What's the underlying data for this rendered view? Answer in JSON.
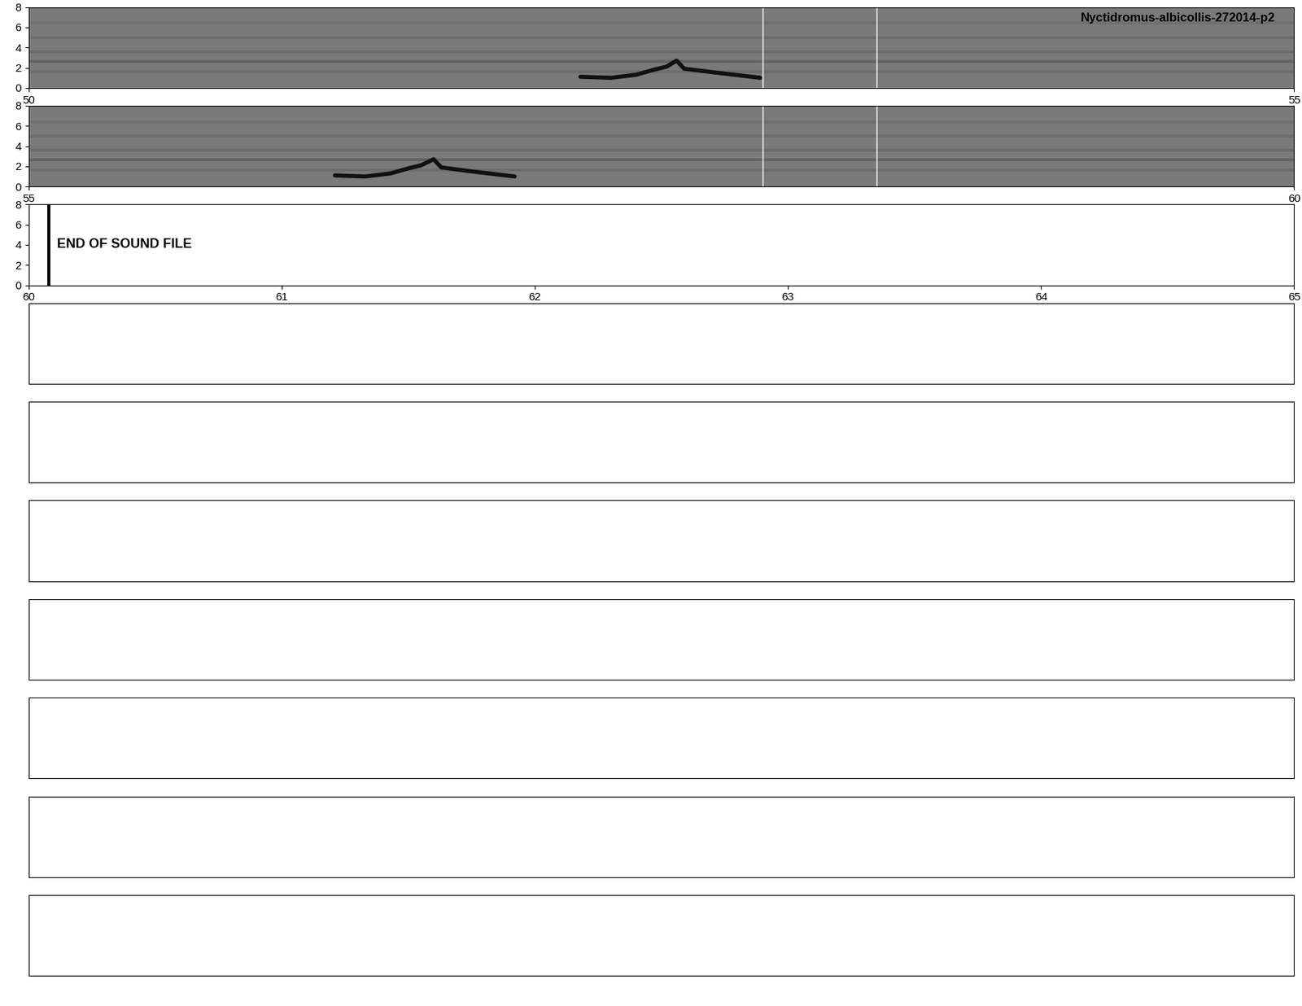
{
  "chart_data": {
    "type": "spectrogram",
    "title": "Nyctidromus-albicollis-272014-p2",
    "panels": [
      {
        "xlim": [
          50,
          55
        ],
        "xticks": [
          50,
          55
        ],
        "ylim": [
          0,
          8
        ],
        "yticks": [
          0,
          2,
          4,
          6,
          8
        ],
        "calls": [
          {
            "x": [
              52.18,
              52.3,
              52.4,
              52.47,
              52.52,
              52.56,
              52.59,
              52.72,
              52.89
            ],
            "y": [
              1.1,
              1.0,
              1.3,
              1.8,
              2.1,
              2.7,
              1.9,
              1.5,
              1.0
            ]
          }
        ],
        "markers": [
          52.9,
          53.35
        ]
      },
      {
        "xlim": [
          55,
          60
        ],
        "xticks": [
          55,
          60
        ],
        "ylim": [
          0,
          8
        ],
        "yticks": [
          0,
          2,
          4,
          6,
          8
        ],
        "calls": [
          {
            "x": [
              56.21,
              56.33,
              56.43,
              56.5,
              56.55,
              56.6,
              56.63,
              56.75,
              56.92
            ],
            "y": [
              1.1,
              1.0,
              1.3,
              1.8,
              2.1,
              2.7,
              1.9,
              1.5,
              1.0
            ]
          }
        ],
        "markers": [
          57.9,
          58.35
        ]
      },
      {
        "xlim": [
          60,
          65
        ],
        "xticks": [
          60,
          61,
          62,
          63,
          64,
          65
        ],
        "ylim": [
          0,
          8
        ],
        "yticks": [
          0,
          2,
          4,
          6,
          8
        ],
        "end": 60.08,
        "annotation": "END OF SOUND FILE"
      },
      {
        "tick_labels": false
      },
      {
        "tick_labels": false
      },
      {
        "tick_labels": false
      },
      {
        "tick_labels": false
      },
      {
        "tick_labels": false
      },
      {
        "tick_labels": false
      },
      {
        "tick_labels": false
      }
    ]
  }
}
